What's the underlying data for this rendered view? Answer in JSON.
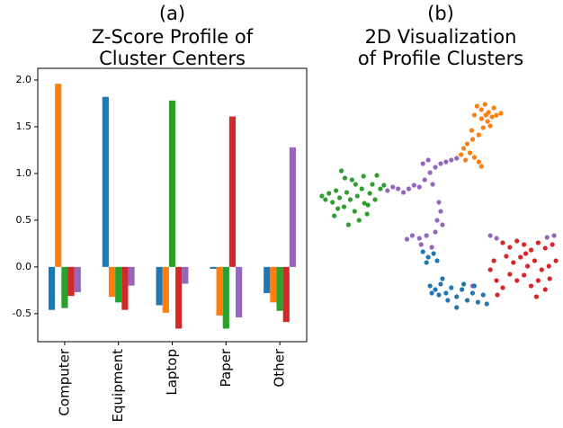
{
  "chart_data": [
    {
      "type": "bar",
      "panel": "(a)",
      "title": [
        "Z-Score Profile of",
        "Cluster Centers"
      ],
      "categories": [
        "Computer",
        "Equipment",
        "Laptop",
        "Paper",
        "Other"
      ],
      "series": [
        {
          "color": "#1f77b4",
          "values": [
            -0.46,
            1.82,
            -0.41,
            -0.02,
            -0.28
          ]
        },
        {
          "color": "#ff7f0e",
          "values": [
            1.96,
            -0.32,
            -0.49,
            -0.52,
            -0.38
          ]
        },
        {
          "color": "#2ca02c",
          "values": [
            -0.44,
            -0.38,
            1.78,
            -0.66,
            -0.47
          ]
        },
        {
          "color": "#d62728",
          "values": [
            -0.31,
            -0.46,
            -0.66,
            1.61,
            -0.59
          ]
        },
        {
          "color": "#9467bd",
          "values": [
            -0.27,
            -0.2,
            -0.18,
            -0.54,
            1.28
          ]
        }
      ],
      "ylim": [
        -0.8,
        2.125
      ],
      "yticks": [
        {
          "value": 2,
          "label": "2.0"
        },
        1.5,
        {
          "value": 1,
          "label": "1.0"
        },
        0.5,
        {
          "value": 0,
          "label": "0.0"
        },
        -0.5
      ]
    },
    {
      "type": "scatter",
      "panel": "(b)",
      "title": [
        "2D Visualization",
        "of Profile Clusters"
      ],
      "xlim": [
        350,
        630
      ],
      "ylim": [
        350,
        110
      ],
      "series": [
        {
          "color": "#2ca02c",
          "x": [
            358,
            362,
            366,
            370,
            374,
            378,
            380,
            383,
            386,
            390,
            392,
            395,
            398,
            400,
            403,
            406,
            409,
            412,
            415,
            418,
            420,
            424,
            428,
            372,
            388,
            396,
            384,
            405,
            376,
            410
          ],
          "values": [
            218,
            222,
            215,
            225,
            212,
            220,
            190,
            230,
            214,
            222,
            200,
            235,
            218,
            245,
            210,
            226,
            238,
            215,
            205,
            222,
            195,
            210,
            206,
            240,
            250,
            205,
            198,
            196,
            232,
            228
          ]
        },
        {
          "color": "#ff7f0e",
          "x": [
            533,
            538,
            542,
            546,
            550,
            555,
            560,
            545,
            538,
            552,
            530,
            540,
            535,
            528,
            522,
            518,
            525,
            530,
            535,
            538,
            520,
            515,
            527,
            548,
            543
          ],
          "values": [
            118,
            122,
            116,
            125,
            130,
            128,
            126,
            135,
            132,
            120,
            128,
            142,
            150,
            155,
            160,
            165,
            170,
            175,
            180,
            185,
            178,
            172,
            145,
            140,
            128
          ]
        },
        {
          "color": "#9467bd",
          "x": [
            432,
            438,
            444,
            450,
            456,
            462,
            468,
            474,
            480,
            486,
            492,
            498,
            504,
            510,
            483,
            490,
            492,
            488,
            494,
            486,
            476,
            468,
            460,
            454,
            470,
            482,
            548,
            555,
            612,
            620,
            528,
            472,
            478
          ],
          "values": [
            212,
            208,
            210,
            214,
            210,
            206,
            208,
            200,
            192,
            186,
            182,
            180,
            178,
            176,
            205,
            225,
            235,
            245,
            250,
            258,
            262,
            265,
            262,
            266,
            272,
            275,
            262,
            265,
            264,
            262,
            318,
            182,
            178
          ]
        },
        {
          "color": "#1f77b4",
          "x": [
            472,
            478,
            484,
            488,
            476,
            480,
            486,
            492,
            498,
            504,
            510,
            516,
            522,
            528,
            534,
            540,
            544,
            510,
            500,
            490,
            482,
            518,
            530,
            494
          ],
          "values": [
            280,
            286,
            282,
            290,
            292,
            318,
            322,
            316,
            326,
            320,
            330,
            322,
            334,
            326,
            336,
            328,
            338,
            342,
            334,
            328,
            326,
            316,
            318,
            310
          ]
        },
        {
          "color": "#d62728",
          "x": [
            562,
            570,
            578,
            586,
            594,
            602,
            610,
            618,
            566,
            574,
            582,
            590,
            598,
            606,
            614,
            622,
            570,
            578,
            586,
            594,
            602,
            610,
            600,
            548,
            555,
            562,
            556,
            552,
            588,
            615
          ],
          "values": [
            270,
            275,
            268,
            272,
            278,
            270,
            276,
            272,
            285,
            292,
            286,
            296,
            290,
            300,
            296,
            290,
            305,
            312,
            306,
            318,
            312,
            322,
            330,
            300,
            312,
            320,
            328,
            290,
            282,
            310
          ]
        }
      ]
    }
  ]
}
